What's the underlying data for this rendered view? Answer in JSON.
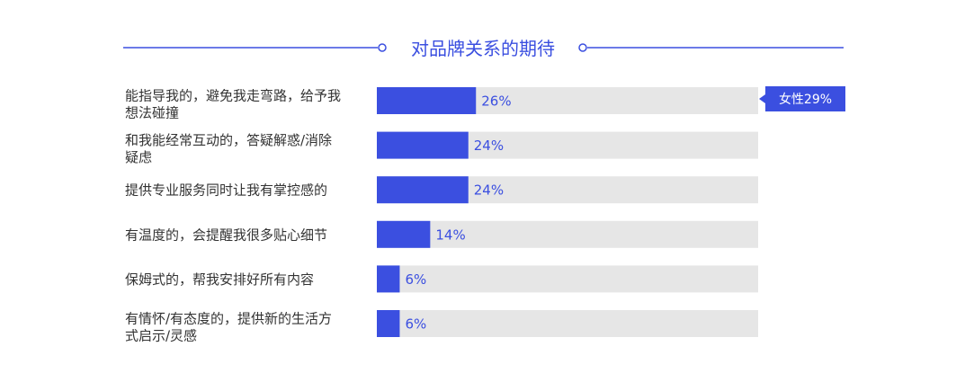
{
  "colors": {
    "accent": "#3b4fe0",
    "track": "#e6e6e6",
    "label": "#333333",
    "background": "#ffffff"
  },
  "chart_data": {
    "type": "bar",
    "orientation": "horizontal",
    "title": "对品牌关系的期待",
    "categories": [
      [
        "能指导我的，避免我走弯路，给予我",
        "想法碰撞"
      ],
      [
        "和我能经常互动的，答疑解惑/消除",
        "疑虑"
      ],
      [
        "提供专业服务同时让我有掌控感的"
      ],
      [
        "有温度的，会提醒我很多贴心细节"
      ],
      [
        "保姆式的，帮我安排好所有内容"
      ],
      [
        "有情怀/有态度的，提供新的生活方",
        "式启示/灵感"
      ]
    ],
    "values": [
      26,
      24,
      24,
      14,
      6,
      6
    ],
    "value_labels": [
      "26%",
      "24%",
      "24%",
      "14%",
      "6%",
      "6%"
    ],
    "xlim": [
      0,
      100
    ],
    "annotation": {
      "text": "女性29%",
      "category_index": 0
    },
    "grid": false
  }
}
